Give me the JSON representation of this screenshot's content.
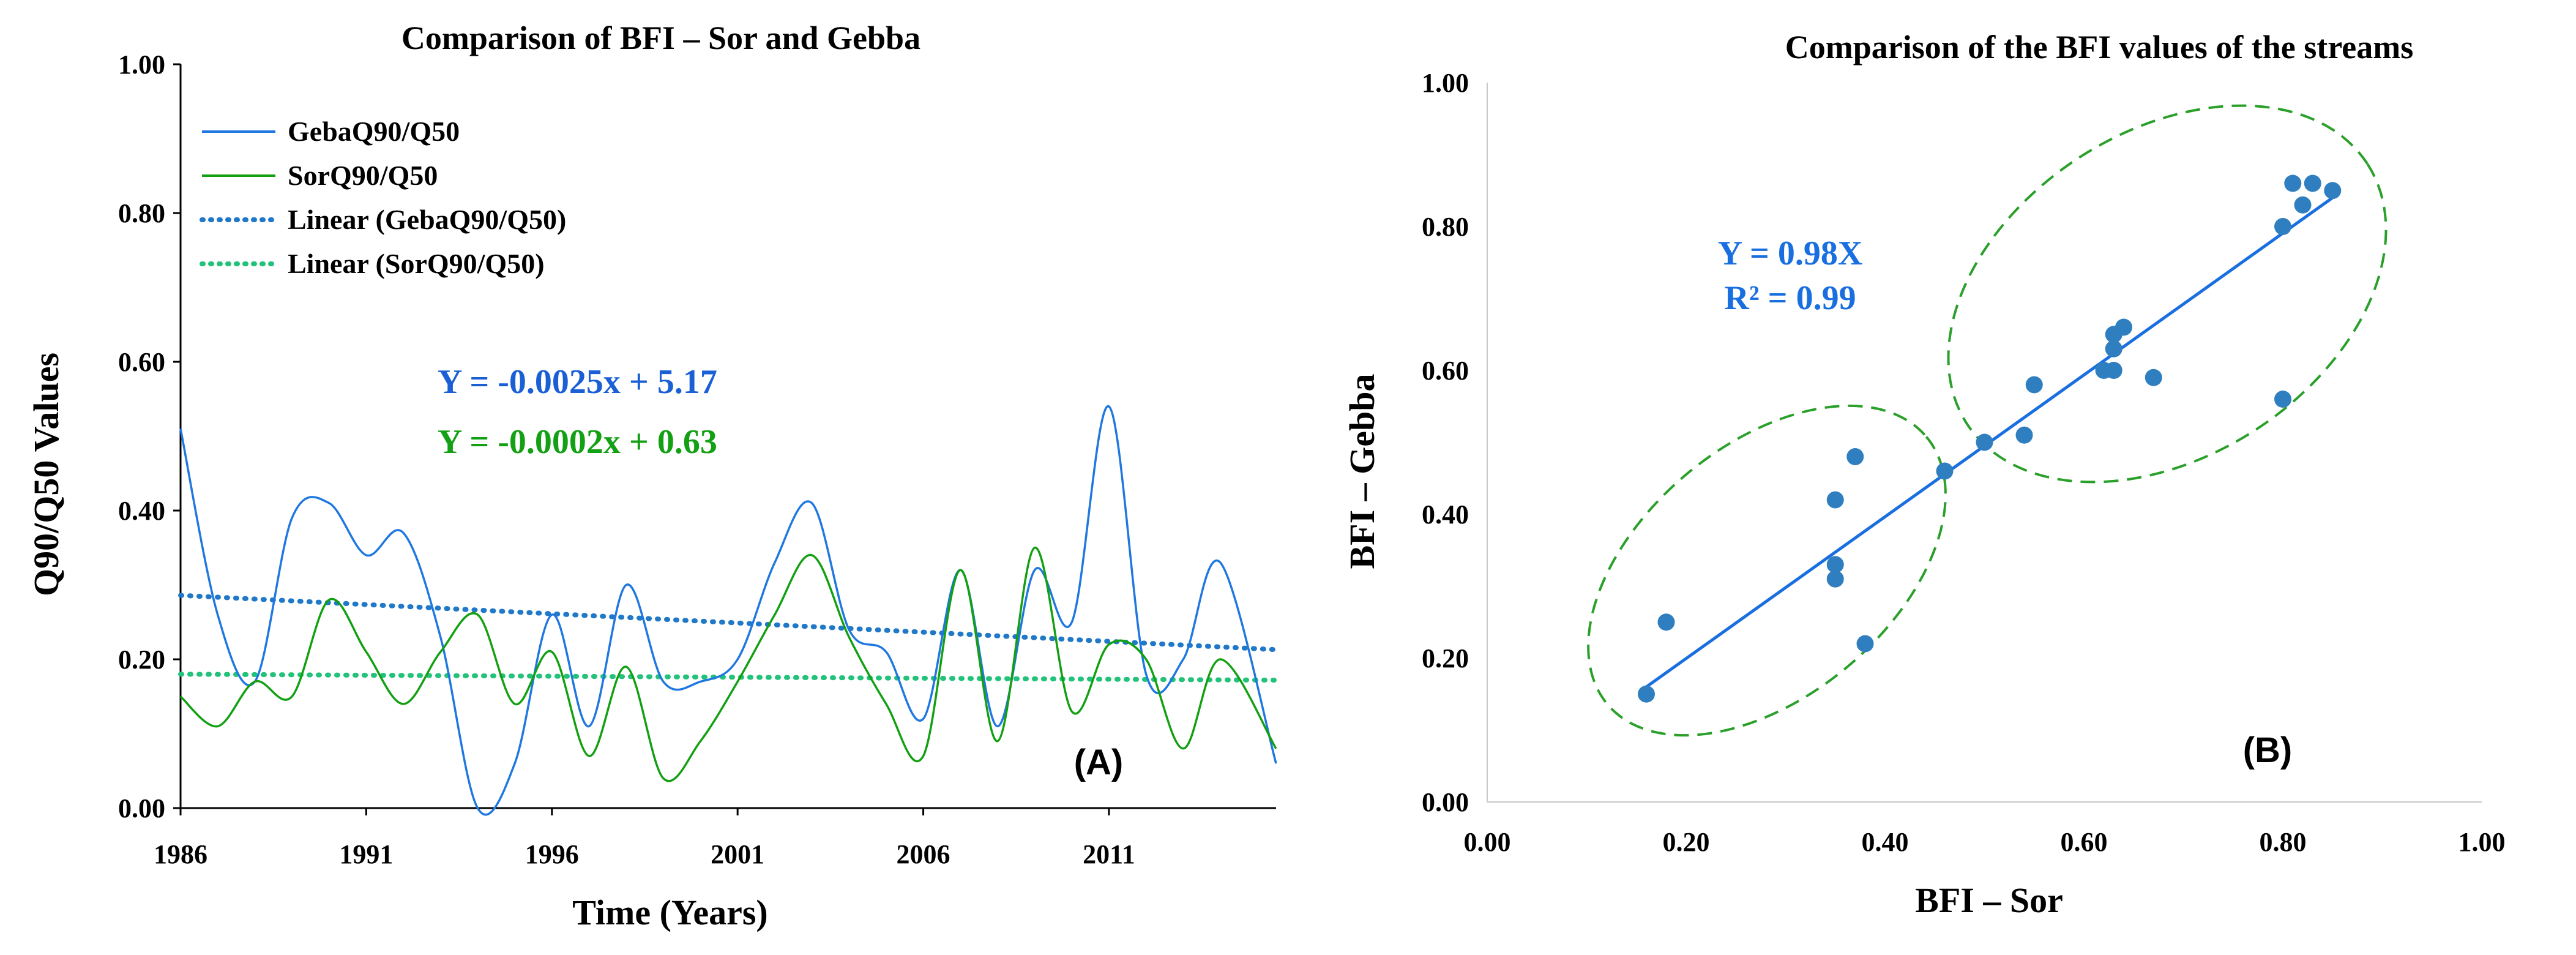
{
  "colors": {
    "geba": "#1f77e0",
    "sor": "#12a012",
    "geba_trend": "#1f78c8",
    "sor_trend": "#22c27a",
    "scatter": "#2f7fc0",
    "fit": "#1a6fe0",
    "ellipse": "#2aa02a"
  },
  "chart_data": [
    {
      "type": "line",
      "panel_label": "(A)",
      "title": "Comparison of BFI – Sor and Gebba",
      "xlabel": "Time (Years)",
      "ylabel": "Q90/Q50 Values",
      "xlim": [
        1986,
        2015.5
      ],
      "ylim": [
        0,
        1
      ],
      "x_ticks": [
        1986,
        1991,
        1996,
        2001,
        2006,
        2011
      ],
      "x_tick_labels": [
        "1986",
        "1991",
        "1996",
        "2001",
        "2006",
        "2011"
      ],
      "y_ticks": [
        0,
        0.2,
        0.4,
        0.6,
        0.8,
        1.0
      ],
      "y_tick_labels": [
        "0.00",
        "0.20",
        "0.40",
        "0.60",
        "0.80",
        "1.00"
      ],
      "x": [
        1986,
        1987,
        1988,
        1989,
        1990,
        1991,
        1992,
        1993,
        1994,
        1995,
        1996,
        1997,
        1998,
        1999,
        2000,
        2001,
        2002,
        2003,
        2004,
        2005,
        2006,
        2007,
        2008,
        2009,
        2010,
        2011,
        2012,
        2013,
        2014,
        2015.5
      ],
      "series": [
        {
          "name": "GebaQ90/Q50",
          "values": [
            0.51,
            0.26,
            0.17,
            0.39,
            0.41,
            0.34,
            0.37,
            0.23,
            0.0,
            0.06,
            0.26,
            0.11,
            0.3,
            0.17,
            0.17,
            0.2,
            0.33,
            0.41,
            0.24,
            0.21,
            0.12,
            0.32,
            0.11,
            0.32,
            0.25,
            0.54,
            0.18,
            0.2,
            0.33,
            0.06
          ]
        },
        {
          "name": "SorQ90/Q50",
          "values": [
            0.15,
            0.11,
            0.17,
            0.15,
            0.28,
            0.21,
            0.14,
            0.21,
            0.26,
            0.14,
            0.21,
            0.07,
            0.19,
            0.04,
            0.09,
            0.17,
            0.26,
            0.34,
            0.23,
            0.14,
            0.07,
            0.32,
            0.09,
            0.35,
            0.13,
            0.22,
            0.2,
            0.08,
            0.2,
            0.08
          ]
        }
      ],
      "trendlines": [
        {
          "name": "Linear (GebaQ90/Q50)",
          "start": 0.286,
          "end": 0.213
        },
        {
          "name": "Linear (SorQ90/Q50)",
          "start": 0.18,
          "end": 0.172
        }
      ],
      "annotations": [
        "Y = -0.0025x + 5.17",
        "Y = -0.0002x + 0.63"
      ]
    },
    {
      "type": "scatter",
      "panel_label": "(B)",
      "title": "Comparison of the BFI values of the streams",
      "xlabel": "BFI – Sor",
      "ylabel": "BFI – Gebba",
      "xlim": [
        0,
        1
      ],
      "ylim": [
        0,
        1
      ],
      "x_ticks": [
        0,
        0.2,
        0.4,
        0.6,
        0.8,
        1.0
      ],
      "x_tick_labels": [
        "0.00",
        "0.20",
        "0.40",
        "0.60",
        "0.80",
        "1.00"
      ],
      "y_ticks": [
        0,
        0.2,
        0.4,
        0.6,
        0.8,
        1.0
      ],
      "y_tick_labels": [
        "0.00",
        "0.20",
        "0.40",
        "0.60",
        "0.80",
        "1.00"
      ],
      "points": [
        [
          0.16,
          0.15
        ],
        [
          0.18,
          0.25
        ],
        [
          0.35,
          0.42
        ],
        [
          0.35,
          0.33
        ],
        [
          0.35,
          0.31
        ],
        [
          0.37,
          0.48
        ],
        [
          0.38,
          0.22
        ],
        [
          0.46,
          0.46
        ],
        [
          0.5,
          0.5
        ],
        [
          0.54,
          0.51
        ],
        [
          0.55,
          0.58
        ],
        [
          0.62,
          0.6
        ],
        [
          0.63,
          0.6
        ],
        [
          0.63,
          0.63
        ],
        [
          0.63,
          0.65
        ],
        [
          0.64,
          0.66
        ],
        [
          0.67,
          0.59
        ],
        [
          0.8,
          0.56
        ],
        [
          0.8,
          0.8
        ],
        [
          0.81,
          0.86
        ],
        [
          0.82,
          0.83
        ],
        [
          0.83,
          0.86
        ],
        [
          0.85,
          0.85
        ]
      ],
      "fit_line": {
        "x": [
          0.16,
          0.85
        ],
        "y": [
          0.16,
          0.84
        ]
      },
      "annotations": [
        "Y = 0.98X",
        "R² = 0.99"
      ]
    }
  ]
}
